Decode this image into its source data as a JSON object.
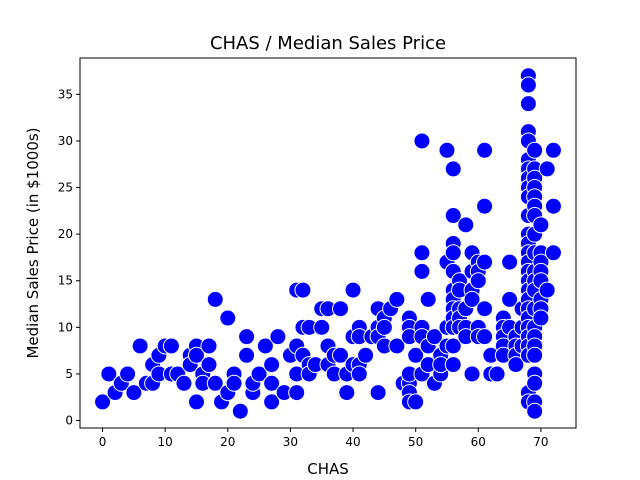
{
  "chart_data": {
    "type": "scatter",
    "title": "CHAS / Median Sales Price",
    "xlabel": "CHAS",
    "ylabel": "Median Sales Price (in $1000s)",
    "xlim": [
      -3.6,
      75.6
    ],
    "ylim": [
      -0.8,
      38.9
    ],
    "xticks": [
      0,
      10,
      20,
      30,
      40,
      50,
      60,
      70
    ],
    "yticks": [
      0,
      5,
      10,
      15,
      20,
      25,
      30,
      35
    ],
    "grid": false,
    "marker_color": "#0000ff",
    "marker_edge_color": "#ffffff",
    "points": [
      [
        0,
        2
      ],
      [
        1,
        5
      ],
      [
        2,
        3
      ],
      [
        3,
        4
      ],
      [
        4,
        5
      ],
      [
        5,
        3
      ],
      [
        6,
        8
      ],
      [
        7,
        4
      ],
      [
        8,
        4
      ],
      [
        8,
        6
      ],
      [
        9,
        7
      ],
      [
        9,
        5
      ],
      [
        10,
        8
      ],
      [
        11,
        8
      ],
      [
        11,
        5
      ],
      [
        12,
        5
      ],
      [
        13,
        4
      ],
      [
        14,
        7
      ],
      [
        14,
        6
      ],
      [
        15,
        2
      ],
      [
        15,
        8
      ],
      [
        15,
        7
      ],
      [
        16,
        5
      ],
      [
        16,
        4
      ],
      [
        17,
        8
      ],
      [
        17,
        6
      ],
      [
        18,
        13
      ],
      [
        18,
        4
      ],
      [
        19,
        2
      ],
      [
        20,
        11
      ],
      [
        20,
        3
      ],
      [
        21,
        5
      ],
      [
        21,
        4
      ],
      [
        22,
        1
      ],
      [
        23,
        9
      ],
      [
        23,
        7
      ],
      [
        24,
        3
      ],
      [
        24,
        4
      ],
      [
        25,
        5
      ],
      [
        26,
        8
      ],
      [
        27,
        6
      ],
      [
        27,
        4
      ],
      [
        27,
        2
      ],
      [
        28,
        9
      ],
      [
        29,
        3
      ],
      [
        30,
        7
      ],
      [
        31,
        14
      ],
      [
        31,
        8
      ],
      [
        31,
        5
      ],
      [
        31,
        3
      ],
      [
        32,
        14
      ],
      [
        32,
        10
      ],
      [
        32,
        7
      ],
      [
        33,
        10
      ],
      [
        33,
        6
      ],
      [
        33,
        5
      ],
      [
        34,
        6
      ],
      [
        35,
        10
      ],
      [
        35,
        12
      ],
      [
        36,
        12
      ],
      [
        36,
        8
      ],
      [
        36,
        6
      ],
      [
        37,
        5
      ],
      [
        37,
        7
      ],
      [
        38,
        12
      ],
      [
        38,
        7
      ],
      [
        39,
        3
      ],
      [
        39,
        5
      ],
      [
        40,
        6
      ],
      [
        40,
        9
      ],
      [
        40,
        14
      ],
      [
        41,
        10
      ],
      [
        41,
        9
      ],
      [
        41,
        6
      ],
      [
        41,
        5
      ],
      [
        42,
        7
      ],
      [
        43,
        9
      ],
      [
        44,
        12
      ],
      [
        44,
        10
      ],
      [
        44,
        9
      ],
      [
        44,
        3
      ],
      [
        45,
        11
      ],
      [
        45,
        10
      ],
      [
        45,
        8
      ],
      [
        46,
        12
      ],
      [
        47,
        13
      ],
      [
        47,
        8
      ],
      [
        48,
        4
      ],
      [
        49,
        4
      ],
      [
        49,
        11
      ],
      [
        49,
        10
      ],
      [
        49,
        9
      ],
      [
        49,
        5
      ],
      [
        49,
        3
      ],
      [
        49,
        2
      ],
      [
        50,
        7
      ],
      [
        50,
        2
      ],
      [
        51,
        30
      ],
      [
        51,
        18
      ],
      [
        51,
        16
      ],
      [
        51,
        10
      ],
      [
        51,
        9
      ],
      [
        51,
        5
      ],
      [
        52,
        13
      ],
      [
        52,
        8
      ],
      [
        52,
        6
      ],
      [
        53,
        9
      ],
      [
        53,
        4
      ],
      [
        54,
        5
      ],
      [
        54,
        7
      ],
      [
        54,
        6
      ],
      [
        55,
        29
      ],
      [
        55,
        17
      ],
      [
        55,
        10
      ],
      [
        55,
        8
      ],
      [
        56,
        27
      ],
      [
        56,
        22
      ],
      [
        56,
        19
      ],
      [
        56,
        18
      ],
      [
        56,
        16
      ],
      [
        56,
        14
      ],
      [
        56,
        13
      ],
      [
        56,
        12
      ],
      [
        56,
        11
      ],
      [
        56,
        10
      ],
      [
        56,
        8
      ],
      [
        56,
        6
      ],
      [
        57,
        15
      ],
      [
        57,
        14
      ],
      [
        57,
        12
      ],
      [
        57,
        11
      ],
      [
        57,
        10
      ],
      [
        58,
        21
      ],
      [
        58,
        12
      ],
      [
        58,
        10
      ],
      [
        58,
        9
      ],
      [
        59,
        18
      ],
      [
        59,
        16
      ],
      [
        59,
        14
      ],
      [
        59,
        13
      ],
      [
        59,
        5
      ],
      [
        60,
        17
      ],
      [
        60,
        16
      ],
      [
        60,
        15
      ],
      [
        60,
        10
      ],
      [
        60,
        9
      ],
      [
        61,
        29
      ],
      [
        61,
        23
      ],
      [
        61,
        17
      ],
      [
        61,
        12
      ],
      [
        61,
        9
      ],
      [
        62,
        7
      ],
      [
        62,
        5
      ],
      [
        63,
        5
      ],
      [
        64,
        11
      ],
      [
        64,
        10
      ],
      [
        64,
        9
      ],
      [
        64,
        8
      ],
      [
        64,
        7
      ],
      [
        65,
        17
      ],
      [
        65,
        13
      ],
      [
        65,
        10
      ],
      [
        66,
        9
      ],
      [
        66,
        8
      ],
      [
        66,
        7
      ],
      [
        66,
        6
      ],
      [
        67,
        12
      ],
      [
        67,
        10
      ],
      [
        67,
        8
      ],
      [
        68,
        37
      ],
      [
        68,
        36
      ],
      [
        68,
        34
      ],
      [
        68,
        31
      ],
      [
        68,
        30
      ],
      [
        68,
        28
      ],
      [
        68,
        27
      ],
      [
        68,
        26
      ],
      [
        68,
        25
      ],
      [
        68,
        24
      ],
      [
        68,
        22
      ],
      [
        68,
        20
      ],
      [
        68,
        19
      ],
      [
        68,
        18
      ],
      [
        68,
        17
      ],
      [
        68,
        16
      ],
      [
        68,
        15
      ],
      [
        68,
        14
      ],
      [
        68,
        13
      ],
      [
        68,
        12
      ],
      [
        68,
        11
      ],
      [
        68,
        10
      ],
      [
        68,
        9
      ],
      [
        68,
        8
      ],
      [
        68,
        7
      ],
      [
        68,
        3
      ],
      [
        68,
        2
      ],
      [
        69,
        29
      ],
      [
        69,
        27
      ],
      [
        69,
        26
      ],
      [
        69,
        25
      ],
      [
        69,
        24
      ],
      [
        69,
        23
      ],
      [
        69,
        22
      ],
      [
        69,
        20
      ],
      [
        69,
        18
      ],
      [
        69,
        16
      ],
      [
        69,
        15
      ],
      [
        69,
        14
      ],
      [
        69,
        12
      ],
      [
        69,
        10
      ],
      [
        69,
        9
      ],
      [
        69,
        8
      ],
      [
        69,
        7
      ],
      [
        69,
        5
      ],
      [
        69,
        4
      ],
      [
        69,
        2
      ],
      [
        69,
        1
      ],
      [
        70,
        21
      ],
      [
        70,
        18
      ],
      [
        70,
        17
      ],
      [
        70,
        16
      ],
      [
        70,
        15
      ],
      [
        70,
        13
      ],
      [
        70,
        12
      ],
      [
        70,
        11
      ],
      [
        71,
        27
      ],
      [
        71,
        14
      ],
      [
        72,
        29
      ],
      [
        72,
        23
      ],
      [
        72,
        18
      ]
    ]
  }
}
